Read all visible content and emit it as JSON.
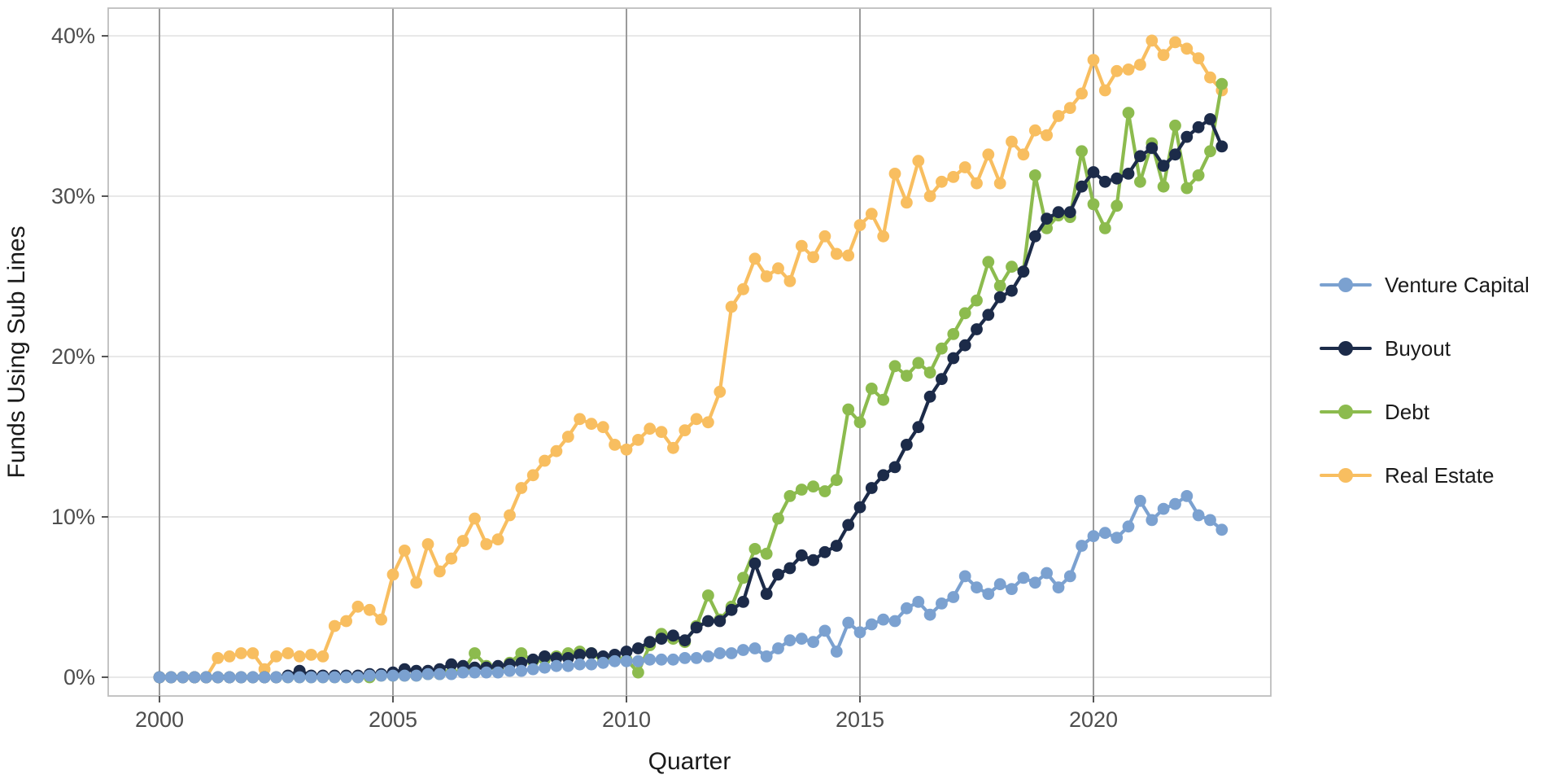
{
  "chart_data": {
    "type": "line",
    "title": "",
    "xlabel": "Quarter",
    "ylabel": "Funds Using Sub Lines",
    "legend_position": "right",
    "grid": {
      "horizontal": true,
      "vertical": true
    },
    "x_axis": {
      "tick_years": [
        2000,
        2005,
        2010,
        2015,
        2020
      ],
      "tick_labels": [
        "2000",
        "2005",
        "2010",
        "2015",
        "2020"
      ],
      "range_years": [
        1998.9,
        2023.8
      ]
    },
    "y_axis": {
      "ticks": [
        0,
        10,
        20,
        30,
        40
      ],
      "tick_labels": [
        "0%",
        "10%",
        "20%",
        "30%",
        "40%"
      ],
      "range": [
        -1.2,
        41.7
      ],
      "unit": "percent"
    },
    "quarters": [
      "2000 Q1",
      "2000 Q2",
      "2000 Q3",
      "2000 Q4",
      "2001 Q1",
      "2001 Q2",
      "2001 Q3",
      "2001 Q4",
      "2002 Q1",
      "2002 Q2",
      "2002 Q3",
      "2002 Q4",
      "2003 Q1",
      "2003 Q2",
      "2003 Q3",
      "2003 Q4",
      "2004 Q1",
      "2004 Q2",
      "2004 Q3",
      "2004 Q4",
      "2005 Q1",
      "2005 Q2",
      "2005 Q3",
      "2005 Q4",
      "2006 Q1",
      "2006 Q2",
      "2006 Q3",
      "2006 Q4",
      "2007 Q1",
      "2007 Q2",
      "2007 Q3",
      "2007 Q4",
      "2008 Q1",
      "2008 Q2",
      "2008 Q3",
      "2008 Q4",
      "2009 Q1",
      "2009 Q2",
      "2009 Q3",
      "2009 Q4",
      "2010 Q1",
      "2010 Q2",
      "2010 Q3",
      "2010 Q4",
      "2011 Q1",
      "2011 Q2",
      "2011 Q3",
      "2011 Q4",
      "2012 Q1",
      "2012 Q2",
      "2012 Q3",
      "2012 Q4",
      "2013 Q1",
      "2013 Q2",
      "2013 Q3",
      "2013 Q4",
      "2014 Q1",
      "2014 Q2",
      "2014 Q3",
      "2014 Q4",
      "2015 Q1",
      "2015 Q2",
      "2015 Q3",
      "2015 Q4",
      "2016 Q1",
      "2016 Q2",
      "2016 Q3",
      "2016 Q4",
      "2017 Q1",
      "2017 Q2",
      "2017 Q3",
      "2017 Q4",
      "2018 Q1",
      "2018 Q2",
      "2018 Q3",
      "2018 Q4",
      "2019 Q1",
      "2019 Q2",
      "2019 Q3",
      "2019 Q4",
      "2020 Q1",
      "2020 Q2",
      "2020 Q3",
      "2020 Q4",
      "2021 Q1",
      "2021 Q2",
      "2021 Q3",
      "2021 Q4",
      "2022 Q1",
      "2022 Q2",
      "2022 Q3",
      "2022 Q4"
    ],
    "series": [
      {
        "name": "Venture Capital",
        "color": "#7BA1D0",
        "values": [
          0,
          0,
          0,
          0,
          0,
          0,
          0,
          0,
          0,
          0,
          0,
          0,
          0,
          0,
          0,
          0,
          0,
          0,
          0.1,
          0.1,
          0.1,
          0.1,
          0.1,
          0.2,
          0.2,
          0.2,
          0.3,
          0.3,
          0.3,
          0.3,
          0.4,
          0.4,
          0.5,
          0.6,
          0.7,
          0.7,
          0.8,
          0.8,
          0.9,
          1.0,
          1.0,
          1.0,
          1.1,
          1.1,
          1.1,
          1.2,
          1.2,
          1.3,
          1.5,
          1.5,
          1.7,
          1.8,
          1.3,
          1.8,
          2.3,
          2.4,
          2.2,
          2.9,
          1.6,
          3.4,
          2.8,
          3.3,
          3.6,
          3.5,
          4.3,
          4.7,
          3.9,
          4.6,
          5.0,
          6.3,
          5.6,
          5.2,
          5.8,
          5.5,
          6.2,
          5.9,
          6.5,
          5.6,
          6.3,
          8.2,
          8.8,
          9.0,
          8.7,
          9.4,
          11.0,
          9.8,
          10.5,
          10.8,
          11.3,
          10.1,
          9.8,
          9.2
        ]
      },
      {
        "name": "Buyout",
        "color": "#1C2B49",
        "values": [
          0,
          0,
          0,
          0,
          0,
          0,
          0,
          0,
          0,
          0,
          0,
          0.1,
          0.4,
          0.1,
          0.1,
          0.1,
          0.1,
          0.1,
          0.2,
          0.2,
          0.3,
          0.5,
          0.4,
          0.4,
          0.5,
          0.8,
          0.7,
          0.6,
          0.6,
          0.7,
          0.8,
          0.9,
          1.1,
          1.3,
          1.2,
          1.2,
          1.4,
          1.5,
          1.3,
          1.4,
          1.6,
          1.8,
          2.2,
          2.4,
          2.6,
          2.3,
          3.1,
          3.5,
          3.5,
          4.2,
          4.7,
          7.1,
          5.2,
          6.4,
          6.8,
          7.6,
          7.3,
          7.8,
          8.2,
          9.5,
          10.6,
          11.8,
          12.6,
          13.1,
          14.5,
          15.6,
          17.5,
          18.6,
          19.9,
          20.7,
          21.7,
          22.6,
          23.7,
          24.1,
          25.3,
          27.5,
          28.6,
          29.0,
          29.0,
          30.6,
          31.5,
          30.9,
          31.1,
          31.4,
          32.5,
          33.0,
          31.9,
          32.6,
          33.7,
          34.3,
          34.8,
          33.1
        ]
      },
      {
        "name": "Debt",
        "color": "#8CBB4E",
        "values": [
          0,
          0,
          0,
          0,
          0,
          0,
          0,
          0,
          0,
          0,
          0,
          0,
          0,
          0,
          0,
          0,
          0,
          0,
          0,
          0.1,
          0.1,
          0.1,
          0.1,
          0.2,
          0.2,
          0.3,
          0.4,
          1.5,
          0.7,
          0.6,
          0.9,
          1.5,
          1.0,
          1.1,
          1.3,
          1.5,
          1.6,
          1.5,
          1.0,
          1.2,
          1.1,
          0.3,
          2.0,
          2.7,
          2.4,
          2.2,
          3.2,
          5.1,
          3.6,
          4.4,
          6.2,
          8.0,
          7.7,
          9.9,
          11.3,
          11.7,
          11.9,
          11.6,
          12.3,
          16.7,
          15.9,
          18.0,
          17.3,
          19.4,
          18.8,
          19.6,
          19.0,
          20.5,
          21.4,
          22.7,
          23.5,
          25.9,
          24.4,
          25.6,
          25.3,
          31.3,
          28.0,
          28.8,
          28.7,
          32.8,
          29.5,
          28.0,
          29.4,
          35.2,
          30.9,
          33.3,
          30.6,
          34.4,
          30.5,
          31.3,
          32.8,
          37.0
        ]
      },
      {
        "name": "Real Estate",
        "color": "#F8BE60",
        "values": [
          0,
          0,
          0,
          0,
          0,
          1.2,
          1.3,
          1.5,
          1.5,
          0.5,
          1.3,
          1.5,
          1.3,
          1.4,
          1.3,
          3.2,
          3.5,
          4.4,
          4.2,
          3.6,
          6.4,
          7.9,
          5.9,
          8.3,
          6.6,
          7.4,
          8.5,
          9.9,
          8.3,
          8.6,
          10.1,
          11.8,
          12.6,
          13.5,
          14.1,
          15.0,
          16.1,
          15.8,
          15.6,
          14.5,
          14.2,
          14.8,
          15.5,
          15.3,
          14.3,
          15.4,
          16.1,
          15.9,
          17.8,
          23.1,
          24.2,
          26.1,
          25.0,
          25.5,
          24.7,
          26.9,
          26.2,
          27.5,
          26.4,
          26.3,
          28.2,
          28.9,
          27.5,
          31.4,
          29.6,
          32.2,
          30.0,
          30.9,
          31.2,
          31.8,
          30.8,
          32.6,
          30.8,
          33.4,
          32.6,
          34.1,
          33.8,
          35.0,
          35.5,
          36.4,
          38.5,
          36.6,
          37.8,
          37.9,
          38.2,
          39.7,
          38.8,
          39.6,
          39.2,
          38.6,
          37.4,
          36.6
        ]
      }
    ],
    "style_colors": {
      "panel_border": "#bdbdbd",
      "h_gridline": "#e0e0e0",
      "v_gridline": "#9b9b9b",
      "tick_mark": "#555555",
      "tick_label": "#4d4d4d",
      "axis_title": "#1a1a1a"
    }
  }
}
